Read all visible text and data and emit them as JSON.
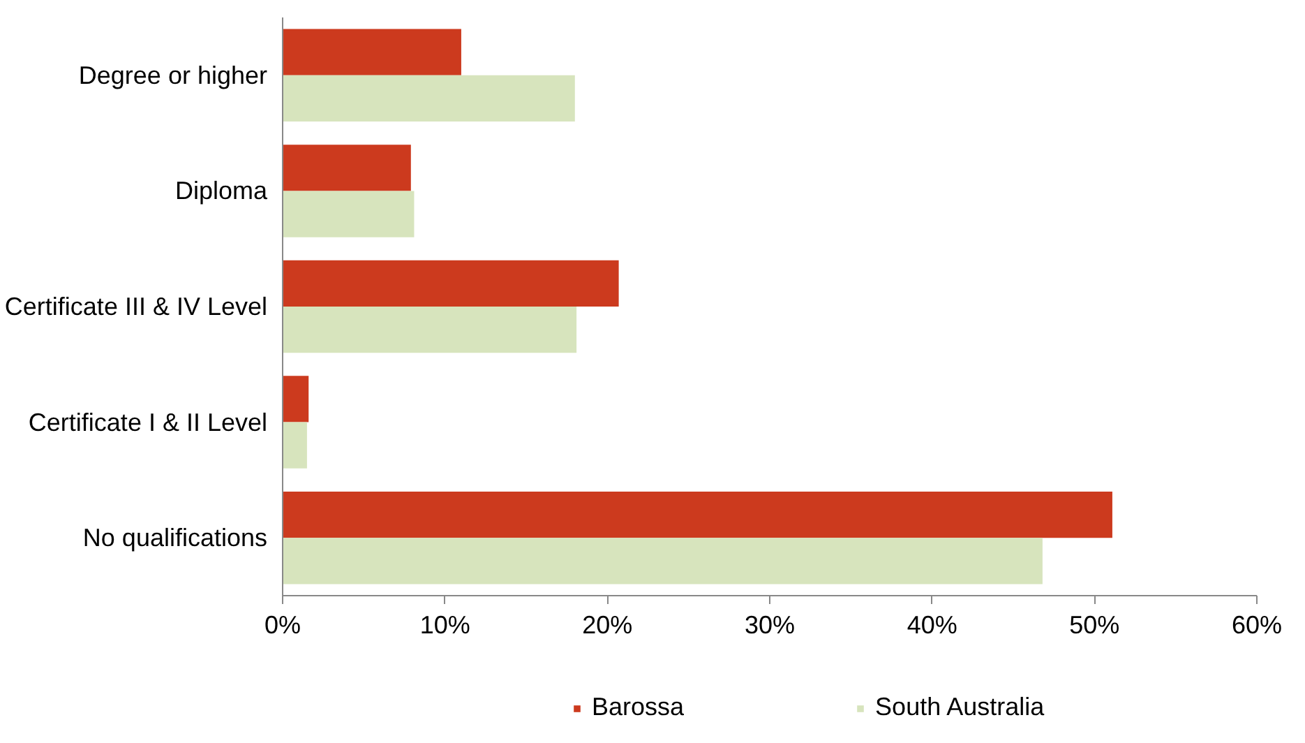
{
  "chart_data": {
    "type": "bar",
    "orientation": "horizontal",
    "categories": [
      "Degree or higher",
      "Diploma",
      "Certificate III & IV Level",
      "Certificate I & II Level",
      "No qualifications"
    ],
    "series": [
      {
        "name": "Barossa",
        "color": "#cc3a1e",
        "values": [
          11.0,
          7.9,
          20.7,
          1.6,
          51.1
        ]
      },
      {
        "name": "South Australia",
        "color": "#d7e4bd",
        "values": [
          18.0,
          8.1,
          18.1,
          1.5,
          46.8
        ]
      }
    ],
    "xlim": [
      0,
      60
    ],
    "xticks": [
      {
        "value": 0,
        "label": "0%"
      },
      {
        "value": 10,
        "label": "10%"
      },
      {
        "value": 20,
        "label": "20%"
      },
      {
        "value": 30,
        "label": "30%"
      },
      {
        "value": 40,
        "label": "40%"
      },
      {
        "value": 50,
        "label": "50%"
      },
      {
        "value": 60,
        "label": "60%"
      }
    ],
    "grid": false,
    "legend": "bottom"
  }
}
